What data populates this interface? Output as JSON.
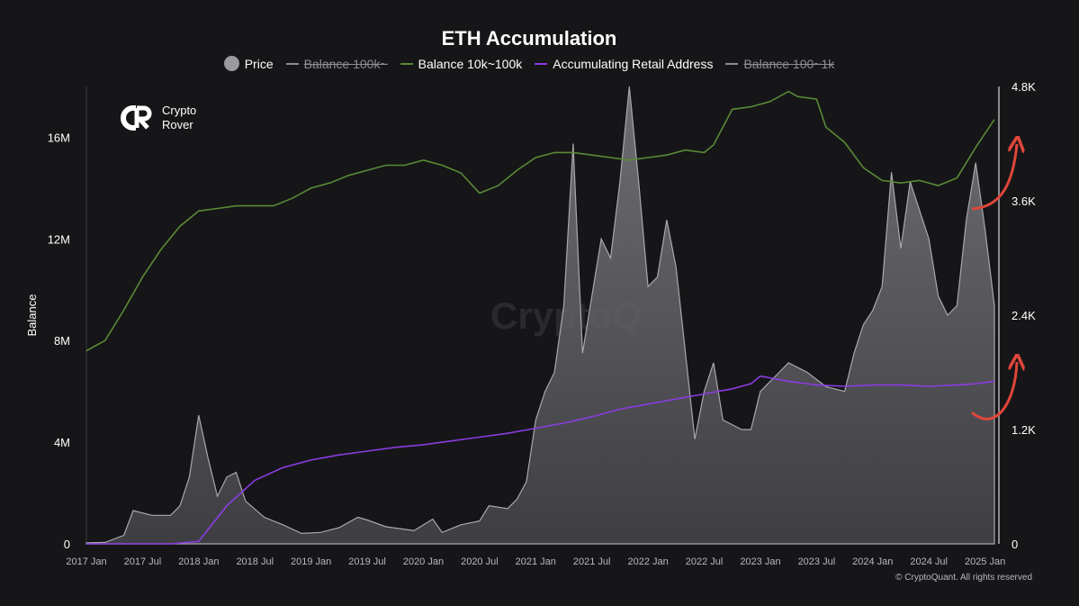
{
  "brand": {
    "line1": "Crypto",
    "line2": "Rover",
    "watermark": "CryptoQ"
  },
  "copyright": "© CryptoQuant. All rights reserved",
  "colors": {
    "background": "#161618",
    "price": "#9a9a9f",
    "balance_10k_100k": "#5a8a37",
    "retail": "#8a3ce0",
    "annotation_arrow": "#e0463a"
  },
  "chart_data": {
    "type": "line",
    "title": "ETH Accumulation",
    "legend": [
      {
        "name": "Price",
        "marker": "circle",
        "active": true
      },
      {
        "name": "Balance 100k~",
        "marker": "line",
        "active": false
      },
      {
        "name": "Balance 10k~100k",
        "marker": "line",
        "active": true
      },
      {
        "name": "Accumulating Retail Address",
        "marker": "line",
        "active": true
      },
      {
        "name": "Balance 100~1k",
        "marker": "line",
        "active": false
      }
    ],
    "ylabel_left": "Balance",
    "yticks_left": [
      "0",
      "4M",
      "8M",
      "12M",
      "16M"
    ],
    "ylim_left": [
      0,
      18000000
    ],
    "yticks_right": [
      "0",
      "1.2K",
      "2.4K",
      "3.6K",
      "4.8K"
    ],
    "ylim_right": [
      0,
      4800
    ],
    "xticks": [
      "2017 Jan",
      "2017 Jul",
      "2018 Jan",
      "2018 Jul",
      "2019 Jan",
      "2019 Jul",
      "2020 Jan",
      "2020 Jul",
      "2021 Jan",
      "2021 Jul",
      "2022 Jan",
      "2022 Jul",
      "2023 Jan",
      "2023 Jul",
      "2024 Jan",
      "2024 Jul",
      "2025 Jan"
    ],
    "x_range": [
      "2017-01",
      "2025-02"
    ],
    "series": [
      {
        "name": "Price",
        "axis": "right",
        "style": "area",
        "x": [
          "2017-01",
          "2017-03",
          "2017-05",
          "2017-06",
          "2017-08",
          "2017-09",
          "2017-10",
          "2017-11",
          "2017-12",
          "2018-01",
          "2018-02",
          "2018-03",
          "2018-04",
          "2018-05",
          "2018-06",
          "2018-08",
          "2018-10",
          "2018-12",
          "2019-02",
          "2019-04",
          "2019-06",
          "2019-07",
          "2019-09",
          "2019-12",
          "2020-02",
          "2020-03",
          "2020-05",
          "2020-07",
          "2020-08",
          "2020-10",
          "2020-11",
          "2020-12",
          "2021-01",
          "2021-02",
          "2021-03",
          "2021-04",
          "2021-05",
          "2021-06",
          "2021-07",
          "2021-08",
          "2021-09",
          "2021-10",
          "2021-11",
          "2021-12",
          "2022-01",
          "2022-02",
          "2022-03",
          "2022-04",
          "2022-05",
          "2022-06",
          "2022-07",
          "2022-08",
          "2022-09",
          "2022-11",
          "2022-12",
          "2023-01",
          "2023-03",
          "2023-04",
          "2023-06",
          "2023-08",
          "2023-10",
          "2023-11",
          "2023-12",
          "2024-01",
          "2024-02",
          "2024-03",
          "2024-04",
          "2024-05",
          "2024-06",
          "2024-07",
          "2024-08",
          "2024-09",
          "2024-10",
          "2024-11",
          "2024-12",
          "2025-01",
          "2025-02"
        ],
        "values": [
          10,
          15,
          90,
          350,
          300,
          300,
          300,
          400,
          700,
          1350,
          900,
          500,
          700,
          750,
          450,
          280,
          200,
          110,
          120,
          170,
          280,
          250,
          180,
          140,
          260,
          120,
          200,
          240,
          400,
          370,
          470,
          650,
          1300,
          1600,
          1800,
          2500,
          4200,
          2000,
          2600,
          3200,
          3000,
          3800,
          4800,
          3800,
          2700,
          2800,
          3400,
          2900,
          2000,
          1100,
          1600,
          1900,
          1300,
          1200,
          1200,
          1600,
          1800,
          1900,
          1800,
          1650,
          1600,
          2000,
          2300,
          2450,
          2700,
          3900,
          3100,
          3800,
          3500,
          3200,
          2600,
          2400,
          2500,
          3400,
          4000,
          3300,
          2500
        ]
      },
      {
        "name": "Balance 10k~100k",
        "axis": "left",
        "x": [
          "2017-01",
          "2017-03",
          "2017-05",
          "2017-07",
          "2017-09",
          "2017-11",
          "2018-01",
          "2018-03",
          "2018-05",
          "2018-07",
          "2018-09",
          "2018-11",
          "2019-01",
          "2019-03",
          "2019-05",
          "2019-07",
          "2019-09",
          "2019-11",
          "2020-01",
          "2020-03",
          "2020-05",
          "2020-07",
          "2020-09",
          "2020-11",
          "2021-01",
          "2021-03",
          "2021-05",
          "2021-07",
          "2021-09",
          "2021-11",
          "2022-01",
          "2022-03",
          "2022-05",
          "2022-07",
          "2022-08",
          "2022-10",
          "2022-12",
          "2023-02",
          "2023-04",
          "2023-05",
          "2023-07",
          "2023-08",
          "2023-10",
          "2023-12",
          "2024-02",
          "2024-04",
          "2024-06",
          "2024-08",
          "2024-10",
          "2024-12",
          "2025-02"
        ],
        "values": [
          7600000,
          8000000,
          9200000,
          10500000,
          11600000,
          12500000,
          13100000,
          13200000,
          13300000,
          13300000,
          13300000,
          13600000,
          14000000,
          14200000,
          14500000,
          14700000,
          14900000,
          14900000,
          15100000,
          14900000,
          14600000,
          13800000,
          14100000,
          14700000,
          15200000,
          15400000,
          15400000,
          15300000,
          15200000,
          15100000,
          15200000,
          15300000,
          15500000,
          15400000,
          15700000,
          17100000,
          17200000,
          17400000,
          17800000,
          17600000,
          17500000,
          16400000,
          15800000,
          14800000,
          14300000,
          14200000,
          14300000,
          14100000,
          14400000,
          15600000,
          16700000
        ]
      },
      {
        "name": "Accumulating Retail Address",
        "axis": "left",
        "x": [
          "2017-01",
          "2017-10",
          "2018-01",
          "2018-04",
          "2018-07",
          "2018-10",
          "2019-01",
          "2019-04",
          "2019-07",
          "2019-10",
          "2020-01",
          "2020-04",
          "2020-07",
          "2020-10",
          "2021-01",
          "2021-04",
          "2021-07",
          "2021-10",
          "2022-01",
          "2022-04",
          "2022-07",
          "2022-10",
          "2022-12",
          "2023-01",
          "2023-04",
          "2023-07",
          "2023-10",
          "2024-01",
          "2024-04",
          "2024-07",
          "2024-10",
          "2024-12",
          "2025-02"
        ],
        "values": [
          0,
          0,
          100000,
          1500000,
          2500000,
          3000000,
          3300000,
          3500000,
          3650000,
          3800000,
          3900000,
          4050000,
          4200000,
          4350000,
          4550000,
          4750000,
          5000000,
          5300000,
          5500000,
          5700000,
          5900000,
          6100000,
          6300000,
          6600000,
          6400000,
          6250000,
          6200000,
          6250000,
          6250000,
          6200000,
          6250000,
          6300000,
          6400000
        ]
      }
    ],
    "annotations": [
      {
        "type": "arrow",
        "meaning": "upward trend",
        "target_series": "Balance 10k~100k"
      },
      {
        "type": "arrow",
        "meaning": "upward trend",
        "target_series": "Accumulating Retail Address"
      }
    ]
  }
}
